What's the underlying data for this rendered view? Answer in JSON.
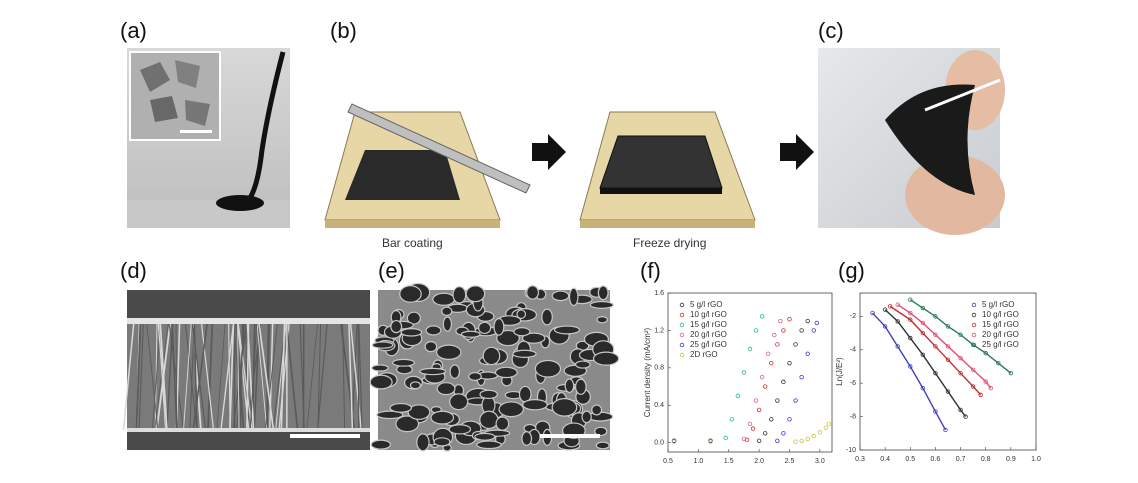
{
  "panels": {
    "labels": [
      "(a)",
      "(b)",
      "(c)",
      "(d)",
      "(e)",
      "(f)",
      "(g)"
    ]
  },
  "diagram": {
    "steps": [
      "Bar coating",
      "Freeze drying"
    ]
  },
  "chart_data": [
    {
      "type": "scatter",
      "ylabel": "Current density (mA/cm²)",
      "xlim": [
        0.5,
        3.2
      ],
      "xticks": [
        0.5,
        {
          "value": 1,
          "label": "1.0"
        },
        1.5,
        {
          "value": 2,
          "label": "2.0"
        },
        2.5,
        {
          "value": 3,
          "label": "3.0"
        }
      ],
      "ylim": [
        -0.1,
        1.6
      ],
      "yticks": [
        {
          "value": 0,
          "label": "0.0"
        },
        0.4,
        0.8,
        1.2,
        1.6
      ],
      "legend": "upper left",
      "series": [
        {
          "name": "5 g/l rGO",
          "color": "#333333",
          "x": [
            0.6,
            1.2,
            2.0,
            2.1,
            2.2,
            2.3,
            2.4,
            2.5,
            2.6,
            2.7,
            2.8
          ],
          "values": [
            0.02,
            0.02,
            0.02,
            0.1,
            0.25,
            0.45,
            0.65,
            0.85,
            1.05,
            1.2,
            1.3
          ]
        },
        {
          "name": "10 g/l rGO",
          "color": "#d03030",
          "x": [
            0.6,
            1.2,
            1.8,
            1.9,
            2.0,
            2.1,
            2.2,
            2.3,
            2.4,
            2.5
          ],
          "values": [
            0.02,
            0.02,
            0.03,
            0.15,
            0.35,
            0.6,
            0.85,
            1.05,
            1.2,
            1.32
          ]
        },
        {
          "name": "15 g/l rGO",
          "color": "#2ab7a9",
          "x": [
            0.6,
            1.2,
            1.45,
            1.55,
            1.65,
            1.75,
            1.85,
            1.95,
            2.05
          ],
          "values": [
            0.02,
            0.02,
            0.05,
            0.25,
            0.5,
            0.75,
            1.0,
            1.2,
            1.35
          ]
        },
        {
          "name": "20 g/l rGO",
          "color": "#e0609a",
          "x": [
            0.6,
            1.2,
            1.75,
            1.85,
            1.95,
            2.05,
            2.15,
            2.25,
            2.35
          ],
          "values": [
            0.02,
            0.02,
            0.04,
            0.2,
            0.45,
            0.7,
            0.95,
            1.15,
            1.3
          ]
        },
        {
          "name": "25 g/l rGO",
          "color": "#3a3ad0",
          "x": [
            0.6,
            1.2,
            2.3,
            2.4,
            2.5,
            2.6,
            2.7,
            2.8,
            2.9,
            2.95
          ],
          "values": [
            0.02,
            0.02,
            0.02,
            0.1,
            0.25,
            0.45,
            0.7,
            0.95,
            1.2,
            1.28
          ]
        },
        {
          "name": "2D rGO",
          "color": "#c8c840",
          "x": [
            0.6,
            1.2,
            2.6,
            2.7,
            2.8,
            2.9,
            3.0,
            3.1,
            3.15
          ],
          "values": [
            0.01,
            0.01,
            0.01,
            0.02,
            0.04,
            0.07,
            0.11,
            0.16,
            0.2
          ]
        }
      ]
    },
    {
      "type": "scatter",
      "ylabel": "Ln(J/E²)",
      "fit": true,
      "xlim": [
        0.3,
        1.0
      ],
      "xticks": [
        0.3,
        0.4,
        0.5,
        0.6,
        0.7,
        0.8,
        0.9,
        {
          "value": 1,
          "label": "1.0"
        }
      ],
      "ylim": [
        -10,
        -0.6
      ],
      "yticks": [
        -2,
        -4,
        -6,
        -8,
        -10
      ],
      "legend": "upper right",
      "series": [
        {
          "name": "5 g/l rGO",
          "color": "#4040c0",
          "x": [
            0.35,
            0.4,
            0.45,
            0.5,
            0.55,
            0.6,
            0.64
          ],
          "values": [
            -1.8,
            -2.6,
            -3.8,
            -5.0,
            -6.3,
            -7.7,
            -8.8
          ]
        },
        {
          "name": "10 g/l rGO",
          "color": "#333333",
          "x": [
            0.4,
            0.45,
            0.5,
            0.55,
            0.6,
            0.65,
            0.7,
            0.72
          ],
          "values": [
            -1.6,
            -2.3,
            -3.3,
            -4.3,
            -5.4,
            -6.5,
            -7.6,
            -8.0
          ]
        },
        {
          "name": "15 g/l rGO",
          "color": "#c03030",
          "x": [
            0.42,
            0.5,
            0.55,
            0.6,
            0.65,
            0.7,
            0.75,
            0.78
          ],
          "values": [
            -1.4,
            -2.2,
            -3.0,
            -3.8,
            -4.6,
            -5.4,
            -6.2,
            -6.7
          ]
        },
        {
          "name": "20 g/l rGO",
          "color": "#e05070",
          "x": [
            0.45,
            0.5,
            0.55,
            0.6,
            0.65,
            0.7,
            0.75,
            0.8,
            0.82
          ],
          "values": [
            -1.3,
            -1.8,
            -2.4,
            -3.1,
            -3.8,
            -4.5,
            -5.2,
            -5.9,
            -6.3
          ]
        },
        {
          "name": "25 g/l rGO",
          "color": "#2a7a5a",
          "x": [
            0.5,
            0.55,
            0.6,
            0.65,
            0.7,
            0.75,
            0.8,
            0.85,
            0.9
          ],
          "values": [
            -1.0,
            -1.5,
            -2.0,
            -2.6,
            -3.1,
            -3.7,
            -4.2,
            -4.8,
            -5.4
          ]
        }
      ]
    }
  ]
}
